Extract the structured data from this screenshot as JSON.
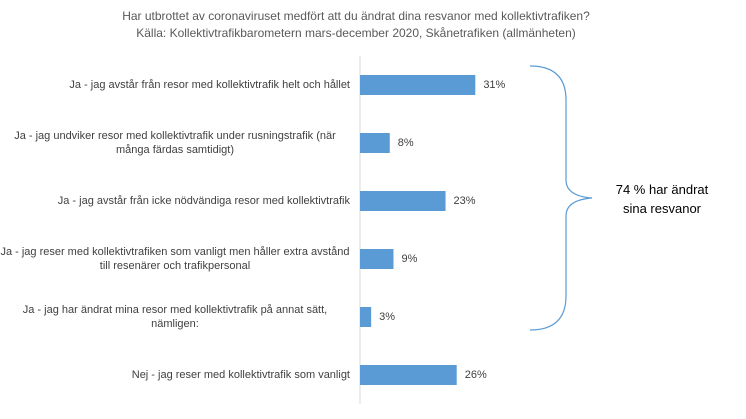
{
  "chart_data": {
    "type": "bar",
    "orientation": "horizontal",
    "title": "Har utbrottet av coronaviruset medfört att du ändrat dina resvanor med kollektivtrafiken?",
    "subtitle": "Källa: Kollektivtrafikbarometern mars-december 2020, Skånetrafiken (allmänheten)",
    "categories": [
      "Ja - jag avstår från resor med kollektivtrafik helt och hållet",
      "Ja - jag undviker resor med kollektivtrafik under rusningstrafik (när många färdas samtidigt)",
      "Ja - jag avstår från icke nödvändiga resor med kollektivtrafik",
      "Ja - jag reser med kollektivtrafiken som vanligt men håller extra avstånd till resenärer och trafikpersonal",
      "Ja - jag har ändrat mina resor med kollektivtrafik på annat sätt, nämligen:",
      "Nej - jag reser med kollektivtrafik som vanligt"
    ],
    "values": [
      31,
      8,
      23,
      9,
      3,
      26
    ],
    "value_labels": [
      "31%",
      "8%",
      "23%",
      "9%",
      "3%",
      "26%"
    ],
    "color": "#5b9bd5",
    "annotation": "74 % har ändrat sina resvanor"
  }
}
